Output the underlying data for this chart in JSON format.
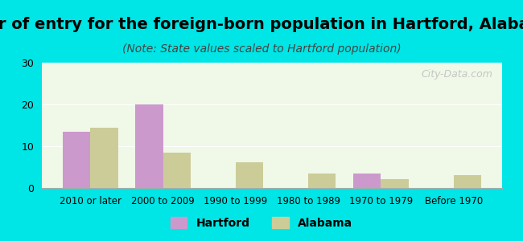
{
  "title": "Year of entry for the foreign-born population in Hartford, Alabama",
  "subtitle": "(Note: State values scaled to Hartford population)",
  "categories": [
    "2010 or later",
    "2000 to 2009",
    "1990 to 1999",
    "1980 to 1989",
    "1970 to 1979",
    "Before 1970"
  ],
  "hartford_values": [
    13.5,
    20.0,
    0,
    0,
    3.5,
    0
  ],
  "alabama_values": [
    14.5,
    8.5,
    6.2,
    3.5,
    2.2,
    3.0
  ],
  "hartford_color": "#cc99cc",
  "alabama_color": "#cccc99",
  "ylim": [
    0,
    30
  ],
  "yticks": [
    0,
    10,
    20,
    30
  ],
  "background_outer": "#00e5e5",
  "background_inner": "#f0f8e8",
  "bar_width": 0.38,
  "title_fontsize": 14,
  "subtitle_fontsize": 10,
  "legend_hartford": "Hartford",
  "legend_alabama": "Alabama",
  "watermark": "City-Data.com"
}
